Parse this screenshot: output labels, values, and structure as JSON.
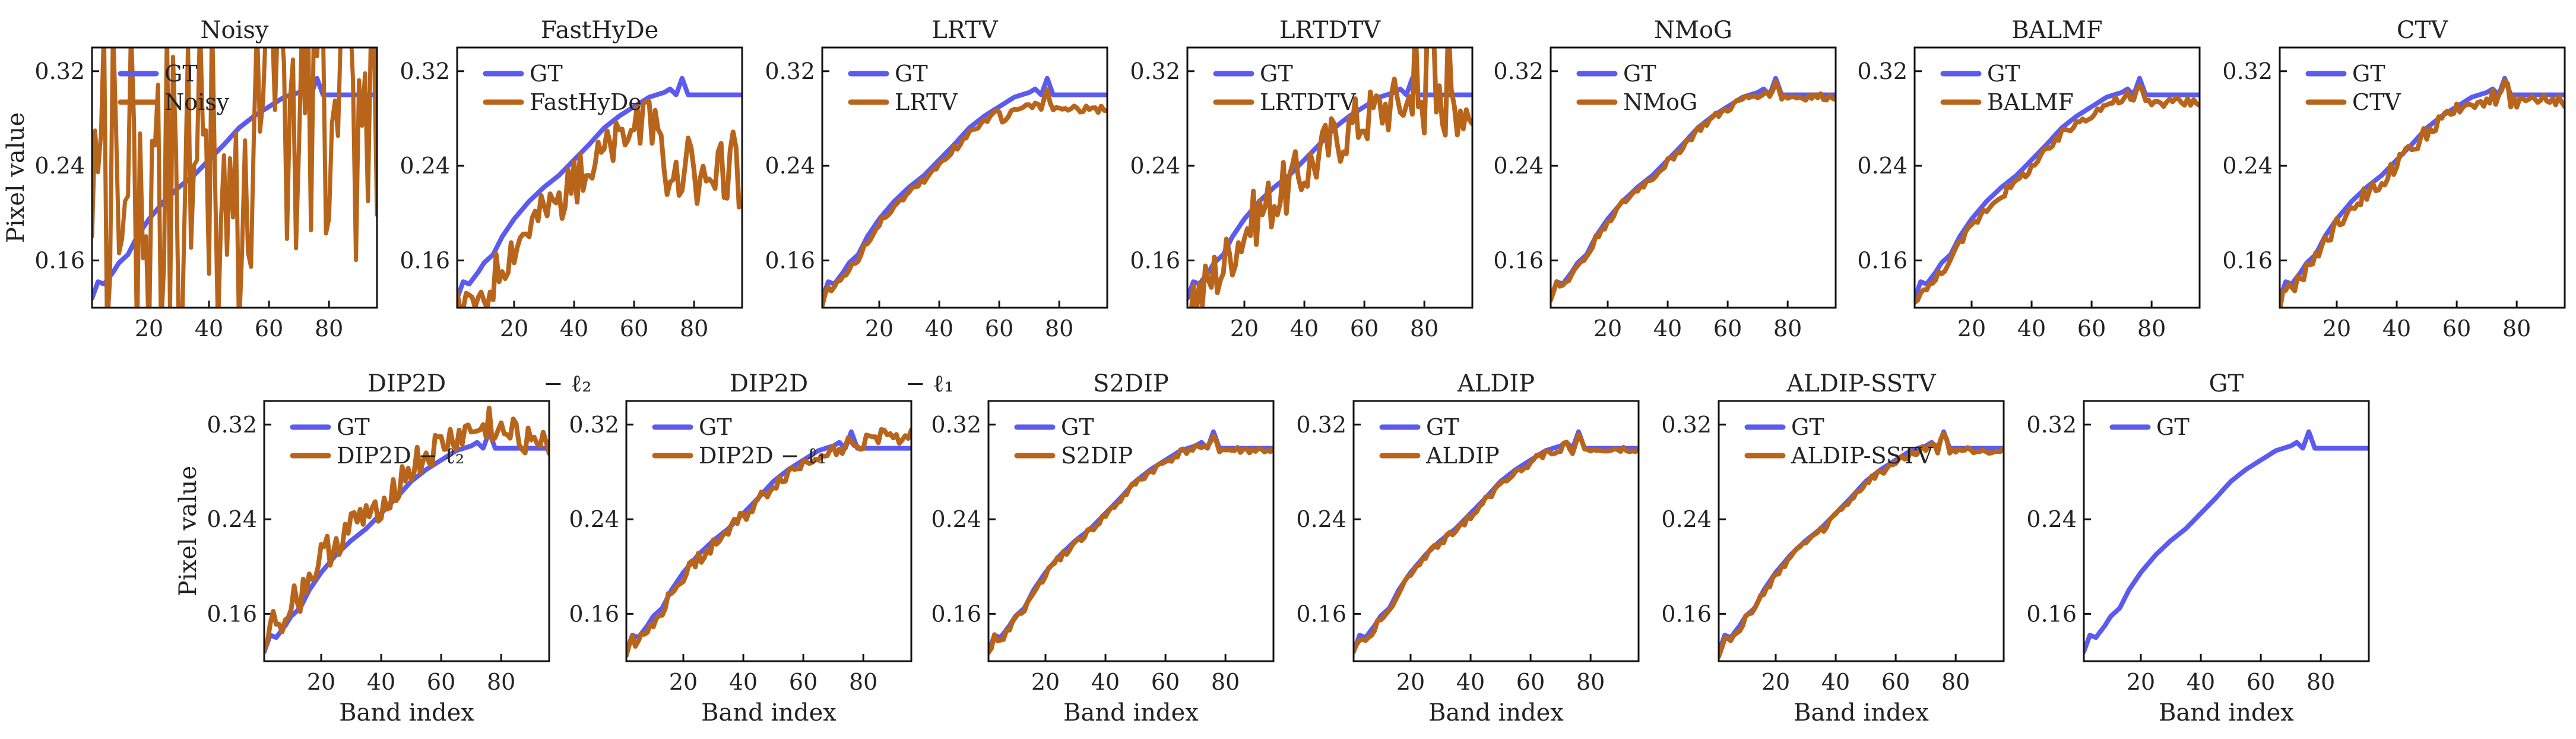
{
  "chart_data": [
    {
      "type": "line",
      "title": "Noisy",
      "legend": [
        "GT",
        "Noisy"
      ],
      "series_kind": "noisy",
      "ylabel": "Pixel value",
      "xlabel": "",
      "xlim": [
        1,
        96
      ],
      "ylim": [
        0.12,
        0.34
      ],
      "xticks": [
        "20",
        "40",
        "60",
        "80"
      ],
      "yticks": [
        "0.16",
        "0.24",
        "0.32"
      ]
    },
    {
      "type": "line",
      "title": "FastHyDe",
      "legend": [
        "GT",
        "FastHyDe"
      ],
      "series_kind": "fasthyde",
      "ylabel": "",
      "xlabel": "",
      "xlim": [
        1,
        96
      ],
      "ylim": [
        0.12,
        0.34
      ],
      "xticks": [
        "20",
        "40",
        "60",
        "80"
      ],
      "yticks": [
        "0.16",
        "0.24",
        "0.32"
      ]
    },
    {
      "type": "line",
      "title": "LRTV",
      "legend": [
        "GT",
        "LRTV"
      ],
      "series_kind": "lrtv",
      "ylabel": "",
      "xlabel": "",
      "xlim": [
        1,
        96
      ],
      "ylim": [
        0.12,
        0.34
      ],
      "xticks": [
        "20",
        "40",
        "60",
        "80"
      ],
      "yticks": [
        "0.16",
        "0.24",
        "0.32"
      ]
    },
    {
      "type": "line",
      "title": "LRTDTV",
      "legend": [
        "GT",
        "LRTDTV"
      ],
      "series_kind": "lrtdtv",
      "ylabel": "",
      "xlabel": "",
      "xlim": [
        1,
        96
      ],
      "ylim": [
        0.12,
        0.34
      ],
      "xticks": [
        "20",
        "40",
        "60",
        "80"
      ],
      "yticks": [
        "0.16",
        "0.24",
        "0.32"
      ]
    },
    {
      "type": "line",
      "title": "NMoG",
      "legend": [
        "GT",
        "NMoG"
      ],
      "series_kind": "close",
      "ylabel": "",
      "xlabel": "",
      "xlim": [
        1,
        96
      ],
      "ylim": [
        0.12,
        0.34
      ],
      "xticks": [
        "20",
        "40",
        "60",
        "80"
      ],
      "yticks": [
        "0.16",
        "0.24",
        "0.32"
      ]
    },
    {
      "type": "line",
      "title": "BALMF",
      "legend": [
        "GT",
        "BALMF"
      ],
      "series_kind": "balmf",
      "ylabel": "",
      "xlabel": "",
      "xlim": [
        1,
        96
      ],
      "ylim": [
        0.12,
        0.34
      ],
      "xticks": [
        "20",
        "40",
        "60",
        "80"
      ],
      "yticks": [
        "0.16",
        "0.24",
        "0.32"
      ]
    },
    {
      "type": "line",
      "title": "CTV",
      "legend": [
        "GT",
        "CTV"
      ],
      "series_kind": "ctv",
      "ylabel": "",
      "xlabel": "",
      "xlim": [
        1,
        96
      ],
      "ylim": [
        0.12,
        0.34
      ],
      "xticks": [
        "20",
        "40",
        "60",
        "80"
      ],
      "yticks": [
        "0.16",
        "0.24",
        "0.32"
      ]
    },
    {
      "type": "line",
      "title": "DIP2D",
      "title_suffix": "− ℓ₂",
      "legend": [
        "GT",
        "DIP2D − ℓ₂"
      ],
      "series_kind": "dipl2",
      "ylabel": "Pixel value",
      "xlabel": "Band index",
      "xlim": [
        1,
        96
      ],
      "ylim": [
        0.12,
        0.34
      ],
      "xticks": [
        "20",
        "40",
        "60",
        "80"
      ],
      "yticks": [
        "0.16",
        "0.24",
        "0.32"
      ]
    },
    {
      "type": "line",
      "title": "DIP2D",
      "title_suffix": "− ℓ₁",
      "legend": [
        "GT",
        "DIP2D − ℓ₁"
      ],
      "series_kind": "dipl1",
      "ylabel": "",
      "xlabel": "Band index",
      "xlim": [
        1,
        96
      ],
      "ylim": [
        0.12,
        0.34
      ],
      "xticks": [
        "20",
        "40",
        "60",
        "80"
      ],
      "yticks": [
        "0.16",
        "0.24",
        "0.32"
      ]
    },
    {
      "type": "line",
      "title": "S2DIP",
      "legend": [
        "GT",
        "S2DIP"
      ],
      "series_kind": "close",
      "ylabel": "",
      "xlabel": "Band index",
      "xlim": [
        1,
        96
      ],
      "ylim": [
        0.12,
        0.34
      ],
      "xticks": [
        "20",
        "40",
        "60",
        "80"
      ],
      "yticks": [
        "0.16",
        "0.24",
        "0.32"
      ]
    },
    {
      "type": "line",
      "title": "ALDIP",
      "legend": [
        "GT",
        "ALDIP"
      ],
      "series_kind": "close",
      "ylabel": "",
      "xlabel": "Band index",
      "xlim": [
        1,
        96
      ],
      "ylim": [
        0.12,
        0.34
      ],
      "xticks": [
        "20",
        "40",
        "60",
        "80"
      ],
      "yticks": [
        "0.16",
        "0.24",
        "0.32"
      ]
    },
    {
      "type": "line",
      "title": "ALDIP-SSTV",
      "legend": [
        "GT",
        "ALDIP-SSTV"
      ],
      "series_kind": "close",
      "ylabel": "",
      "xlabel": "Band index",
      "xlim": [
        1,
        96
      ],
      "ylim": [
        0.12,
        0.34
      ],
      "xticks": [
        "20",
        "40",
        "60",
        "80"
      ],
      "yticks": [
        "0.16",
        "0.24",
        "0.32"
      ]
    },
    {
      "type": "line",
      "title": "GT",
      "legend": [
        "GT"
      ],
      "series_kind": "gt_only",
      "ylabel": "",
      "xlabel": "Band index",
      "xlim": [
        1,
        96
      ],
      "ylim": [
        0.12,
        0.34
      ],
      "xticks": [
        "20",
        "40",
        "60",
        "80"
      ],
      "yticks": [
        "0.16",
        "0.24",
        "0.32"
      ]
    }
  ],
  "gt_curve": {
    "bands": [
      1,
      3,
      5,
      8,
      10,
      13,
      16,
      20,
      25,
      30,
      35,
      40,
      45,
      50,
      55,
      60,
      65,
      70,
      72,
      74,
      76,
      78,
      80,
      85,
      90,
      96
    ],
    "values": [
      0.128,
      0.142,
      0.14,
      0.15,
      0.158,
      0.165,
      0.18,
      0.195,
      0.21,
      0.222,
      0.232,
      0.245,
      0.258,
      0.272,
      0.282,
      0.29,
      0.298,
      0.302,
      0.305,
      0.3,
      0.314,
      0.3,
      0.3,
      0.3,
      0.3,
      0.3
    ]
  },
  "colors": {
    "gt": "#5b5bef",
    "estimate": "#b8651b"
  }
}
